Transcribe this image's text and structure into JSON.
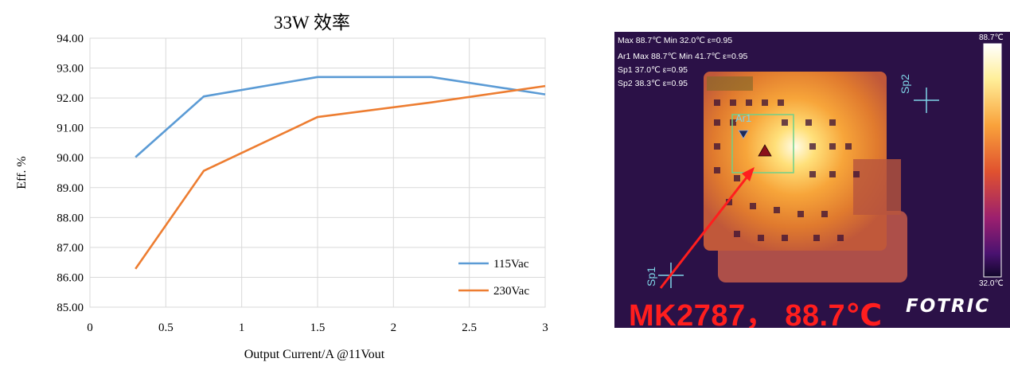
{
  "chart_data": {
    "type": "line",
    "title": "33W 效率",
    "xlabel": "Output Current/A @11Vout",
    "ylabel": "Eff. %",
    "xlim": [
      0,
      3
    ],
    "ylim": [
      85,
      94
    ],
    "x_ticks": [
      "0",
      "0.5",
      "1",
      "1.5",
      "2",
      "2.5",
      "3"
    ],
    "y_ticks": [
      "85.00",
      "86.00",
      "87.00",
      "88.00",
      "89.00",
      "90.00",
      "91.00",
      "92.00",
      "93.00",
      "94.00"
    ],
    "grid": true,
    "legend_position": "bottom-right",
    "series": [
      {
        "name": "115Vac",
        "color": "#5b9bd5",
        "x": [
          0.3,
          0.75,
          1.5,
          2.25,
          3
        ],
        "y": [
          90.02,
          92.05,
          92.7,
          92.7,
          92.12
        ]
      },
      {
        "name": "230Vac",
        "color": "#ed7d31",
        "x": [
          0.3,
          0.75,
          1.5,
          2.25,
          3
        ],
        "y": [
          86.28,
          89.56,
          91.36,
          91.85,
          92.4
        ]
      }
    ]
  },
  "thermal": {
    "overlay_lines": [
      "Max 88.7℃ Min 32.0℃  ε=0.95",
      "Ar1 Max 88.7℃ Min 41.7℃  ε=0.95",
      "Sp1 37.0℃  ε=0.95",
      "Sp2 38.3℃  ε=0.95"
    ],
    "area_label": "Ar1",
    "spot1_label": "Sp1",
    "spot2_label": "Sp2",
    "scale_max": "88.7℃",
    "scale_min": "32.0℃",
    "caption": "MK2787， 88.7℃",
    "brand": "FOTRIC"
  }
}
